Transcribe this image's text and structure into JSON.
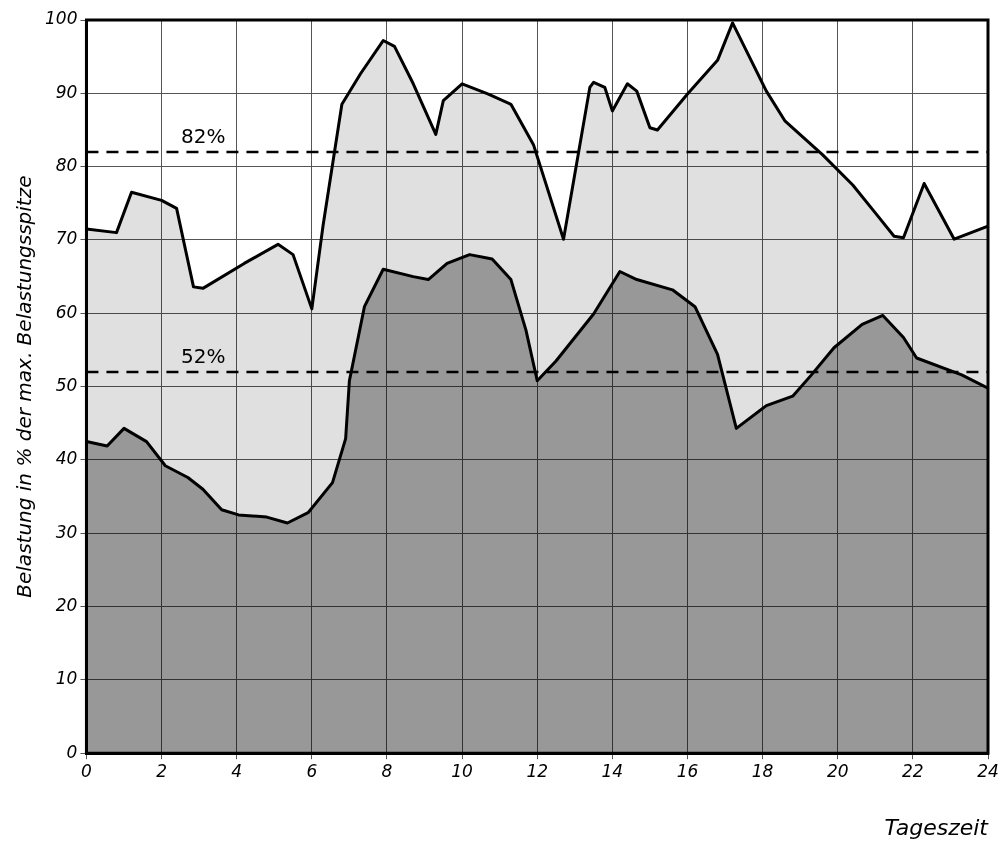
{
  "chart_data": {
    "type": "area",
    "xlabel": "Tageszeit",
    "ylabel": "Belastung in % der max. Belastungsspitze",
    "xlim": [
      0,
      24
    ],
    "ylim": [
      0,
      100
    ],
    "xticks": [
      0,
      2,
      4,
      6,
      8,
      10,
      12,
      14,
      16,
      18,
      20,
      22,
      24
    ],
    "yticks": [
      0,
      10,
      20,
      30,
      40,
      50,
      60,
      70,
      80,
      90,
      100
    ],
    "grid": true,
    "legend": false,
    "series": [
      {
        "color": "#000000",
        "x": [
          0,
          0.8,
          1.2,
          2.0,
          2.4,
          2.85,
          3.1,
          4.2,
          5.1,
          5.5,
          6.0,
          6.3,
          6.8,
          7.3,
          7.9,
          8.2,
          8.7,
          9.3,
          9.5,
          10.0,
          10.7,
          11.3,
          11.9,
          12.7,
          13.4,
          13.5,
          13.8,
          14.0,
          14.4,
          14.65,
          15.0,
          15.2,
          16.0,
          16.8,
          17.2,
          18.1,
          18.6,
          19.6,
          20.4,
          21.0,
          21.5,
          21.75,
          22.3,
          23.1,
          24
        ],
        "values": [
          71.5,
          71,
          76.5,
          75.4,
          74.3,
          63.6,
          63.4,
          66.8,
          69.4,
          68,
          60.6,
          72,
          88.5,
          92.7,
          97.2,
          96.4,
          91.3,
          84.4,
          89,
          91.3,
          89.9,
          88.5,
          83,
          70.1,
          90.8,
          91.5,
          90.8,
          87.6,
          91.3,
          90.3,
          85.3,
          85,
          89.9,
          94.5,
          99.6,
          90.3,
          86.2,
          81.6,
          77.5,
          73.7,
          70.5,
          70.3,
          77.7,
          70.1,
          71.9
        ]
      },
      {
        "color": "#000000",
        "x": [
          0,
          0.55,
          1.0,
          1.6,
          2.1,
          2.7,
          3.1,
          3.6,
          4.05,
          4.8,
          5.35,
          5.9,
          6.55,
          6.9,
          7.0,
          7.4,
          7.9,
          8.7,
          9.1,
          9.6,
          10.2,
          10.8,
          11.3,
          11.7,
          12.0,
          12.5,
          13.5,
          14.2,
          14.65,
          15.6,
          16.2,
          16.8,
          17.3,
          18.1,
          18.8,
          19.3,
          19.9,
          20.65,
          21.2,
          21.75,
          22.1,
          23.3,
          24
        ],
        "values": [
          42.5,
          41.9,
          44.3,
          42.5,
          39.2,
          37.6,
          36,
          33.2,
          32.5,
          32.2,
          31.4,
          32.8,
          36.9,
          42.9,
          50.8,
          60.9,
          66,
          65,
          64.6,
          66.8,
          68,
          67.4,
          64.6,
          57.7,
          50.8,
          53.5,
          59.9,
          65.7,
          64.6,
          63.2,
          60.9,
          54.4,
          44.3,
          47.4,
          48.7,
          51.6,
          55.3,
          58.5,
          59.7,
          56.7,
          53.9,
          51.6,
          49.8
        ]
      }
    ],
    "ref_lines": [
      {
        "axis": "y",
        "value": 82,
        "label": "82%",
        "line_style": "dashed"
      },
      {
        "axis": "y",
        "value": 52,
        "label": "52%",
        "line_style": "dashed"
      }
    ]
  }
}
